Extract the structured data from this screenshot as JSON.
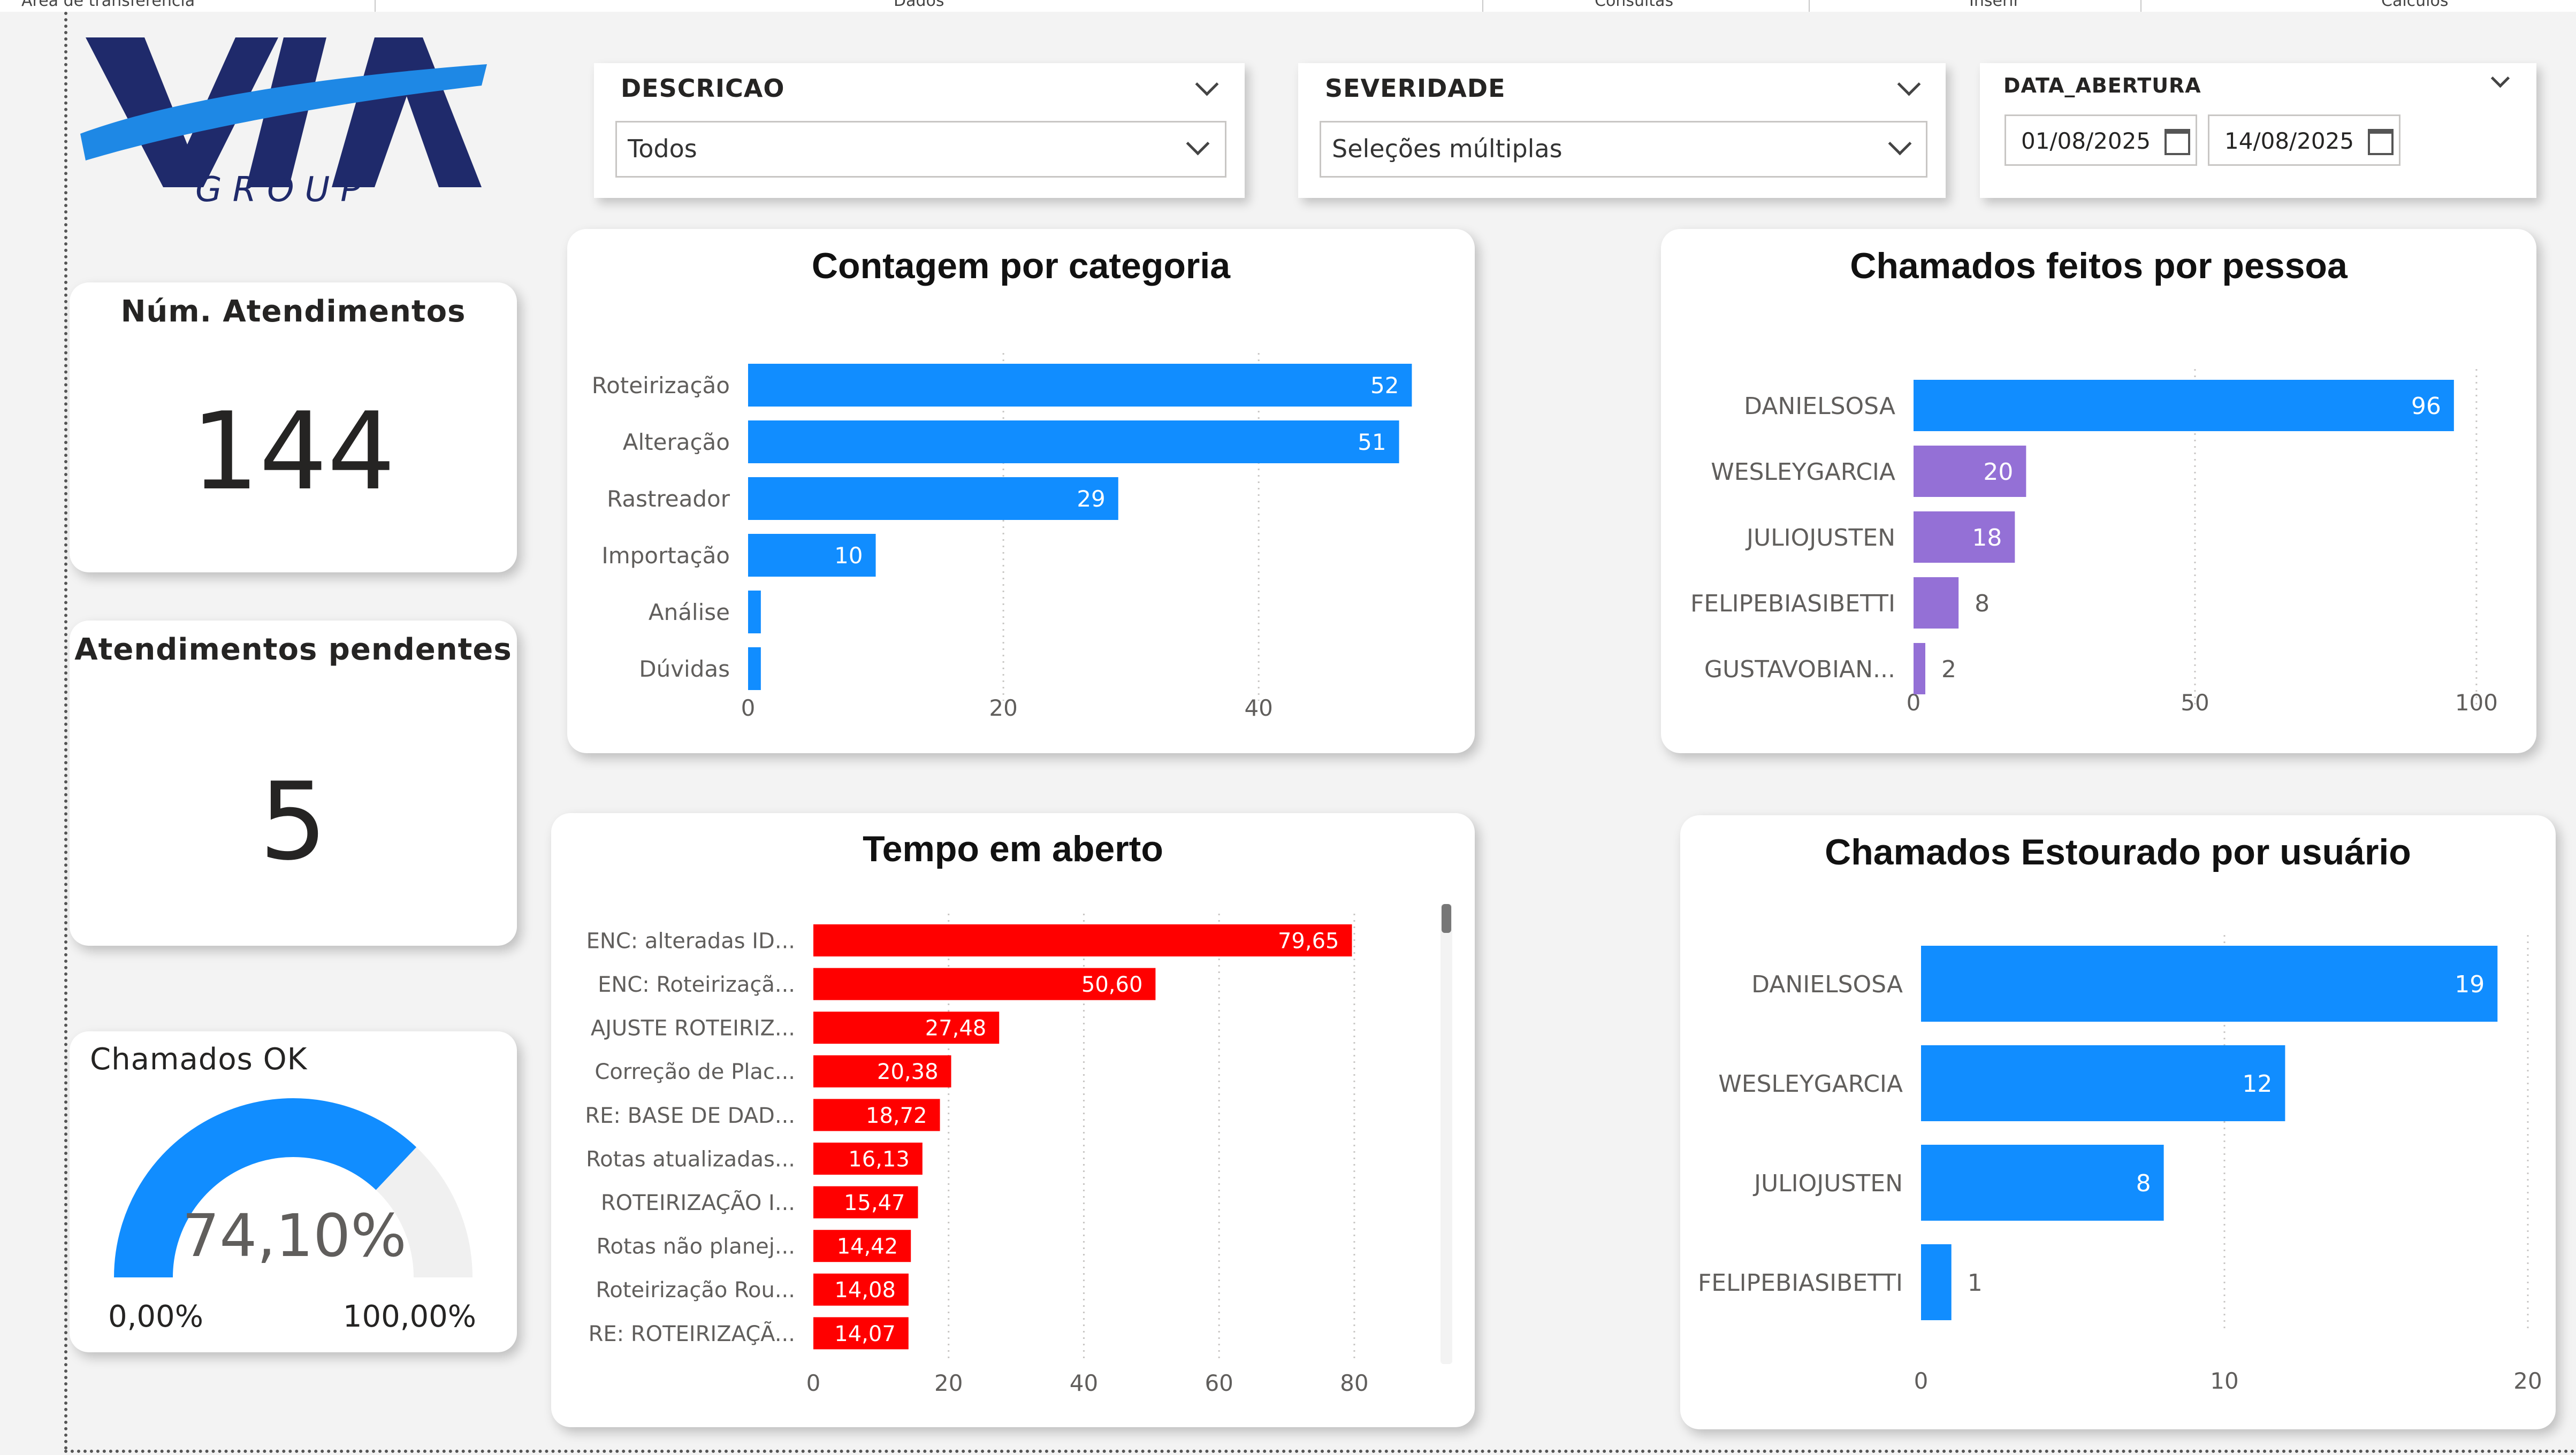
{
  "top_tabs": [
    "Área de transferência",
    "Dados",
    "Consultas",
    "Inserir",
    "Cálculos"
  ],
  "logo": {
    "text": "VIA",
    "subtext": "GROUP",
    "primary_color": "#1f2a6b",
    "accent_color": "#1e88e5"
  },
  "slicers": {
    "descricao": {
      "title": "DESCRICAO",
      "value": "Todos"
    },
    "severidade": {
      "title": "SEVERIDADE",
      "value": "Seleções múltiplas"
    },
    "data_abertura": {
      "title": "DATA_ABERTURA",
      "start": "01/08/2025",
      "end": "14/08/2025"
    }
  },
  "kpis": {
    "atendimentos": {
      "title": "Núm. Atendimentos",
      "value": "144"
    },
    "pendentes": {
      "title": "Atendimentos pendentes",
      "value": "5"
    }
  },
  "gauge": {
    "title": "Chamados OK",
    "value": 74.1,
    "value_label": "74,10%",
    "min_label": "0,00%",
    "max_label": "100,00%",
    "fill_color": "#118dff",
    "track_color": "#f0f0f0"
  },
  "charts": {
    "categoria": {
      "title": "Contagem por categoria"
    },
    "pessoa": {
      "title": "Chamados feitos por pessoa"
    },
    "tempo": {
      "title": "Tempo em aberto"
    },
    "estourado": {
      "title": "Chamados Estourado por usuário"
    }
  },
  "chart_data": [
    {
      "id": "categoria",
      "type": "bar",
      "orientation": "horizontal",
      "title": "Contagem por categoria",
      "categories": [
        "Roteirização",
        "Alteração",
        "Rastreador",
        "Importação",
        "Análise",
        "Dúvidas"
      ],
      "values": [
        52,
        51,
        29,
        10,
        1,
        1
      ],
      "labels": [
        "52",
        "51",
        "29",
        "10",
        "",
        ""
      ],
      "xlim": [
        0,
        55
      ],
      "ticks": [
        0,
        20,
        40
      ],
      "colors": [
        "#118dff"
      ]
    },
    {
      "id": "pessoa",
      "type": "bar",
      "orientation": "horizontal",
      "title": "Chamados feitos por pessoa",
      "categories": [
        "DANIELSOSA",
        "WESLEYGARCIA",
        "JULIOJUSTEN",
        "FELIPEBIASIBETTI",
        "GUSTAVOBIAN..."
      ],
      "values": [
        96,
        20,
        18,
        8,
        2
      ],
      "labels": [
        "96",
        "20",
        "18",
        "8",
        "2"
      ],
      "xlim": [
        0,
        104
      ],
      "ticks": [
        0,
        50,
        100
      ],
      "colors": [
        "#118dff",
        "#9470d6",
        "#9470d6",
        "#9470d6",
        "#9470d6"
      ]
    },
    {
      "id": "tempo",
      "type": "bar",
      "orientation": "horizontal",
      "title": "Tempo em aberto",
      "categories": [
        "ENC: alteradas ID...",
        "ENC: Roteirizaçã...",
        "AJUSTE ROTEIRIZ...",
        "Correção de Plac...",
        "RE: BASE DE DAD...",
        "Rotas atualizadas...",
        "ROTEIRIZAÇÃO I...",
        "Rotas não planej...",
        "Roteirização Rou...",
        "RE: ROTEIRIZAÇÃ..."
      ],
      "values": [
        79.65,
        50.6,
        27.48,
        20.38,
        18.72,
        16.13,
        15.47,
        14.42,
        14.08,
        14.07
      ],
      "labels": [
        "79,65",
        "50,60",
        "27,48",
        "20,38",
        "18,72",
        "16,13",
        "15,47",
        "14,42",
        "14,08",
        "14,07"
      ],
      "xlim": [
        0,
        88
      ],
      "ticks": [
        0,
        20,
        40,
        60,
        80
      ],
      "colors": [
        "#ff0000"
      ]
    },
    {
      "id": "estourado",
      "type": "bar",
      "orientation": "horizontal",
      "title": "Chamados Estourado por usuário",
      "categories": [
        "DANIELSOSA",
        "WESLEYGARCIA",
        "JULIOJUSTEN",
        "FELIPEBIASIBETTI"
      ],
      "values": [
        19,
        12,
        8,
        1
      ],
      "labels": [
        "19",
        "12",
        "8",
        "1"
      ],
      "xlim": [
        0,
        20
      ],
      "ticks": [
        0,
        10,
        20
      ],
      "colors": [
        "#118dff"
      ]
    }
  ]
}
